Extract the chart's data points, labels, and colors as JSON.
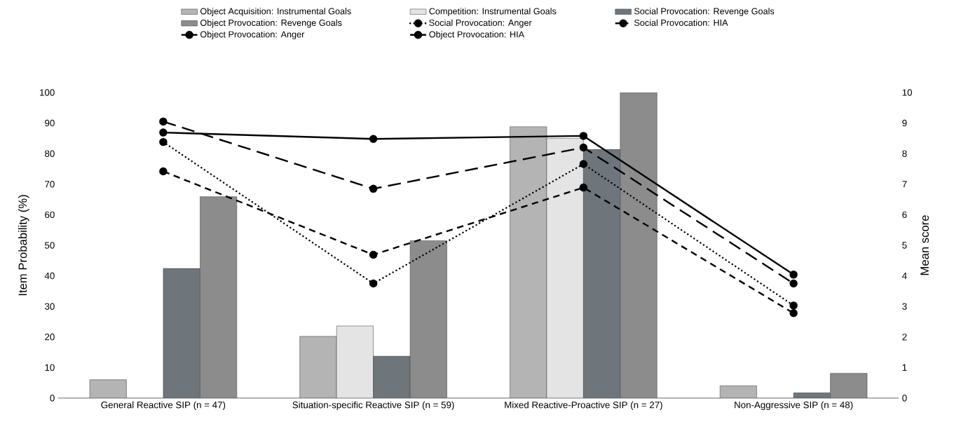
{
  "chart_data": {
    "type": "bar",
    "categories": [
      "General Reactive SIP (n = 47)",
      "Situation-specific Reactive SIP (n = 59)",
      "Mixed Reactive-Proactive SIP (n = 27)",
      "Non-Aggressive SIP  (n = 48)"
    ],
    "series": [
      {
        "name": "Object Acquisition: Instrumental Goals",
        "color": "#b4b4b4",
        "values": [
          6.0,
          20.2,
          88.8,
          4.0
        ]
      },
      {
        "name": "Competition: Instrumental Goals",
        "color": "#e4e4e4",
        "values": [
          null,
          23.6,
          85,
          null
        ]
      },
      {
        "name": "Social Provocation: Revenge Goals",
        "color": "#6e767c",
        "values": [
          42.4,
          13.7,
          81.4,
          1.7
        ]
      },
      {
        "name": "Object Provocation: Revenge Goals",
        "color": "#8c8c8c",
        "values": [
          65.9,
          51.5,
          100,
          8.1
        ]
      },
      {
        "name": "Social Provocation: Anger",
        "type": "line",
        "axis": "y2",
        "line_style": "dotted",
        "color": "#000000",
        "values": [
          8.38,
          3.75,
          7.66,
          3.03
        ]
      },
      {
        "name": "Social Provocation: HIA",
        "type": "line",
        "axis": "y2",
        "line_style": "dashed",
        "color": "#000000",
        "values": [
          9.05,
          6.85,
          8.2,
          3.75
        ]
      },
      {
        "name": "Object Provocation: Anger",
        "type": "line",
        "axis": "y2",
        "line_style": "solid",
        "color": "#000000",
        "values": [
          8.69,
          8.48,
          8.58,
          4.04
        ]
      },
      {
        "name": "Object Provocation: HIA",
        "type": "line",
        "axis": "y2",
        "line_style": "dashed",
        "color": "#000000",
        "values": [
          7.42,
          4.69,
          6.89,
          2.78
        ]
      }
    ],
    "ylabel": "Item Probability (%)",
    "y2label": "Mean score",
    "ylim": [
      0,
      100
    ],
    "yticks": [
      0,
      10,
      20,
      30,
      40,
      50,
      60,
      70,
      80,
      90,
      100
    ],
    "y2lim": [
      0,
      10
    ],
    "y2ticks": [
      0,
      1,
      2,
      3,
      4,
      5,
      6,
      7,
      8,
      9,
      10
    ],
    "marker": "circle",
    "grid": false,
    "legend": "top"
  }
}
